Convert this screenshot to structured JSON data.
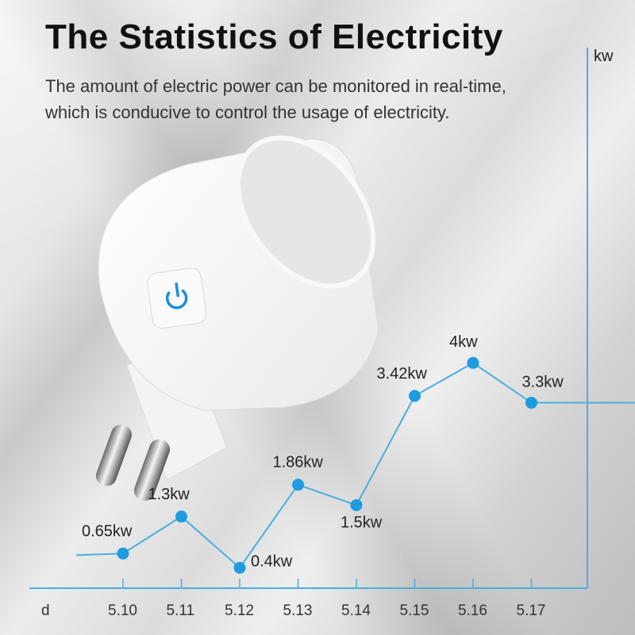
{
  "header": {
    "title": "The Statistics of Electricity",
    "subtitle_line1": "The amount of electric power can be monitored in real-time,",
    "subtitle_line2": "which is conducive to control the usage of electricity."
  },
  "product": {
    "icon": "power-button-icon",
    "accent": "#1a8fd6"
  },
  "chart_data": {
    "type": "line",
    "xlabel": "d",
    "ylabel": "kw",
    "categories": [
      "5.10",
      "5.11",
      "5.12",
      "5.13",
      "5.14",
      "5.15",
      "5.16",
      "5.17"
    ],
    "series": [
      {
        "values": [
          0.65,
          1.3,
          0.4,
          1.86,
          1.5,
          3.42,
          4,
          3.3
        ]
      }
    ],
    "data_labels": [
      "0.65kw",
      "1.3kw",
      "0.4kw",
      "1.86kw",
      "1.5kw",
      "3.42kw",
      "4kw",
      "3.3kw"
    ],
    "grid": false,
    "line_color": "#4aaee0",
    "marker_color": "#1f9be0"
  }
}
